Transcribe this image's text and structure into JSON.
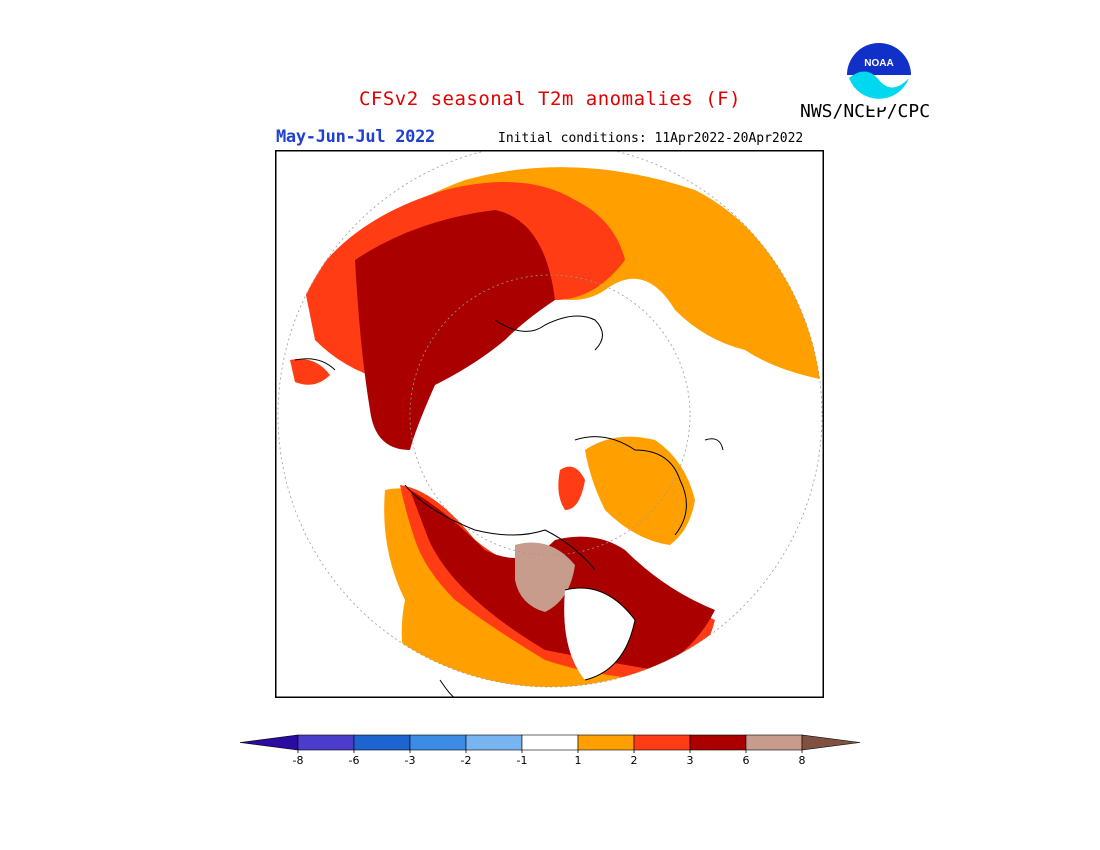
{
  "header": {
    "title": "CFSv2 seasonal T2m anomalies (F)",
    "agency": "NWS/NCEP/CPC",
    "period": "May-Jun-Jul 2022",
    "initial_conditions": "Initial conditions: 11Apr2022-20Apr2022",
    "logo_text": "NOAA"
  },
  "map": {
    "projection": "north-polar-stereographic",
    "variable": "2 m temperature anomaly",
    "units": "F"
  },
  "legend": {
    "tick_labels": [
      "-8",
      "-6",
      "-3",
      "-2",
      "-1",
      "1",
      "2",
      "3",
      "6",
      "8"
    ],
    "colors": [
      "#2b0ca0",
      "#4b3ccc",
      "#1e64d0",
      "#3c8ce6",
      "#78b4f0",
      "#ffffff",
      "#ffa000",
      "#ff3c14",
      "#aa0000",
      "#c89c8c",
      "#805040"
    ]
  }
}
